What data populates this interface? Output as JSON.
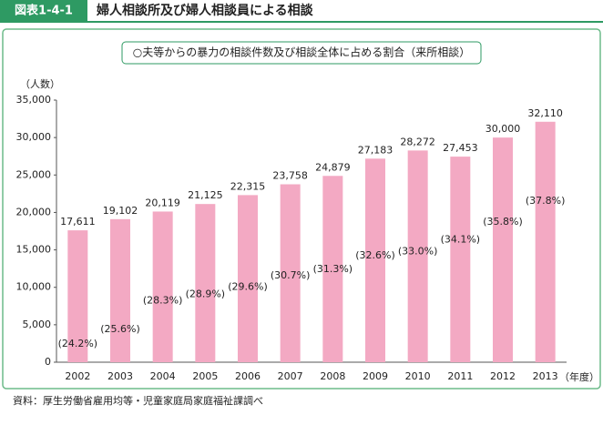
{
  "header": {
    "label": "図表1-4-1",
    "title": "婦人相談所及び婦人相談員による相談"
  },
  "chart_data": {
    "type": "bar",
    "title": "○夫等からの暴力の相談件数及び相談全体に占める割合（来所相談）",
    "y_label": "（人数）",
    "x_label": "（年度）",
    "categories": [
      "2002",
      "2003",
      "2004",
      "2005",
      "2006",
      "2007",
      "2008",
      "2009",
      "2010",
      "2011",
      "2012",
      "2013"
    ],
    "values": [
      17611,
      19102,
      20119,
      21125,
      22315,
      23758,
      24879,
      27183,
      28272,
      27453,
      30000,
      32110
    ],
    "value_labels": [
      "17,611",
      "19,102",
      "20,119",
      "21,125",
      "22,315",
      "23,758",
      "24,879",
      "27,183",
      "28,272",
      "27,453",
      "30,000",
      "32,110"
    ],
    "color": "#f3a9c3",
    "ratios": {
      "values": [
        24.2,
        25.6,
        28.3,
        28.9,
        29.6,
        30.7,
        31.3,
        32.6,
        33.0,
        34.1,
        35.8,
        37.8
      ],
      "value_labels": [
        "(24.2%)",
        "(25.6%)",
        "(28.3%)",
        "(28.9%)",
        "(29.6%)",
        "(30.7%)",
        "(31.3%)",
        "(32.6%)",
        "(33.0%)",
        "(34.1%)",
        "(35.8%)",
        "(37.8%)"
      ]
    },
    "ylim": [
      0,
      35000
    ],
    "yticks": [
      0,
      {
        "value": 5000,
        "label": "5,000"
      },
      {
        "value": 10000,
        "label": "10,000"
      },
      {
        "value": 15000,
        "label": "15,000"
      },
      {
        "value": 20000,
        "label": "20,000"
      },
      {
        "value": 25000,
        "label": "25,000"
      },
      {
        "value": 30000,
        "label": "30,000"
      },
      {
        "value": 35000,
        "label": "35,000"
      }
    ],
    "grid": false
  },
  "source": "資料：厚生労働省雇用均等・児童家庭局家庭福祉課調べ"
}
